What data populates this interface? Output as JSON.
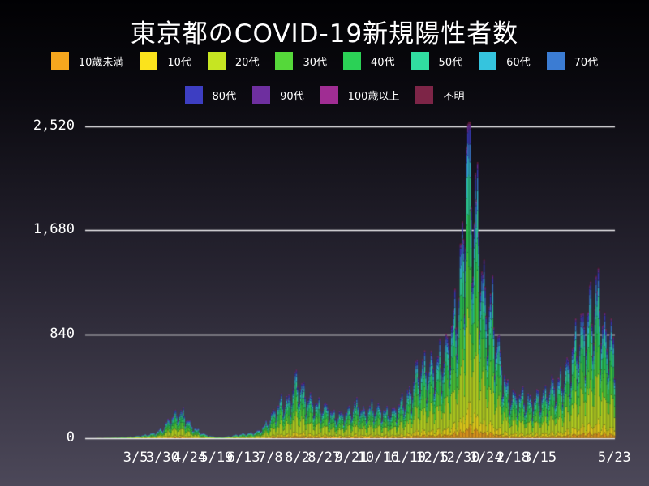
{
  "title": "東京都のCOVID-19新規陽性者数",
  "colors": {
    "background_top": "#010103",
    "background_bottom": "#4c4859",
    "grid_line": "#f0f0f2",
    "text": "#ffffff",
    "bar_outline": "rgba(10,12,24,0.4)"
  },
  "chart_data": {
    "type": "bar",
    "stacked": true,
    "title": "東京都のCOVID-19新規陽性者数",
    "x_start_date": "2020/1/24",
    "x_end_date": "2021/5/23",
    "ylim": [
      0,
      2520
    ],
    "grid": true,
    "legend_position": "top",
    "y_ticks": [
      {
        "value": 0,
        "label": "0"
      },
      {
        "value": 840,
        "label": "840"
      },
      {
        "value": 1680,
        "label": "1,680"
      },
      {
        "value": 2520,
        "label": "2,520"
      }
    ],
    "x_ticks": [
      {
        "day": 41,
        "label": "3/5"
      },
      {
        "day": 66,
        "label": "3/30"
      },
      {
        "day": 91,
        "label": "4/24"
      },
      {
        "day": 116,
        "label": "5/19"
      },
      {
        "day": 141,
        "label": "6/13"
      },
      {
        "day": 166,
        "label": "7/8"
      },
      {
        "day": 191,
        "label": "8/2"
      },
      {
        "day": 216,
        "label": "8/27"
      },
      {
        "day": 241,
        "label": "9/21"
      },
      {
        "day": 266,
        "label": "10/16"
      },
      {
        "day": 291,
        "label": "11/10"
      },
      {
        "day": 316,
        "label": "12/5"
      },
      {
        "day": 341,
        "label": "12/30"
      },
      {
        "day": 366,
        "label": "1/24"
      },
      {
        "day": 391,
        "label": "2/18"
      },
      {
        "day": 416,
        "label": "3/15"
      },
      {
        "day": 485,
        "label": "5/23"
      }
    ],
    "series": [
      {
        "name": "10歳未満",
        "color": "#F6A71E",
        "share": 0.035
      },
      {
        "name": "10代",
        "color": "#FBE31C",
        "share": 0.065
      },
      {
        "name": "20代",
        "color": "#C6E522",
        "share": 0.27
      },
      {
        "name": "30代",
        "color": "#55D83A",
        "share": 0.2
      },
      {
        "name": "40代",
        "color": "#2BD156",
        "share": 0.15
      },
      {
        "name": "50代",
        "color": "#31DDA0",
        "share": 0.105
      },
      {
        "name": "60代",
        "color": "#35C4DE",
        "share": 0.06
      },
      {
        "name": "70代",
        "color": "#3B7CD3",
        "share": 0.05
      },
      {
        "name": "80代",
        "color": "#3D3EC2",
        "share": 0.038
      },
      {
        "name": "90代",
        "color": "#6E2F9F",
        "share": 0.017
      },
      {
        "name": "100歳以上",
        "color": "#A02D93",
        "share": 0.003
      },
      {
        "name": "不明",
        "color": "#7D2547",
        "share": 0.007
      }
    ],
    "legend_row_split": 8,
    "daily_total_anchors": {
      "day_offsets": [
        0,
        8,
        15,
        22,
        29,
        37,
        44,
        51,
        58,
        65,
        72,
        78,
        84,
        88,
        92,
        99,
        106,
        113,
        120,
        127,
        134,
        141,
        148,
        155,
        162,
        169,
        176,
        183,
        190,
        197,
        204,
        211,
        218,
        225,
        232,
        239,
        246,
        253,
        260,
        267,
        274,
        281,
        288,
        295,
        302,
        309,
        316,
        323,
        330,
        337,
        342,
        345,
        349,
        351,
        354,
        358,
        365,
        372,
        379,
        386,
        393,
        400,
        407,
        414,
        421,
        428,
        435,
        442,
        449,
        456,
        463,
        470,
        477,
        482,
        485
      ],
      "values": [
        1,
        2,
        3,
        5,
        8,
        12,
        18,
        27,
        40,
        70,
        143,
        197,
        206,
        170,
        103,
        60,
        26,
        12,
        6,
        14,
        25,
        35,
        39,
        57,
        111,
        206,
        290,
        295,
        470,
        360,
        300,
        256,
        247,
        181,
        187,
        218,
        270,
        207,
        249,
        235,
        203,
        215,
        294,
        352,
        539,
        561,
        584,
        621,
        736,
        949,
        1337,
        1591,
        2520,
        2268,
        1837,
        1809,
        1070,
        1026,
        639,
        369,
        327,
        337,
        293,
        330,
        342,
        430,
        446,
        570,
        759,
        876,
        1050,
        1121,
        772,
        843,
        535
      ]
    },
    "weekday_factors": [
      1.1,
      1.15,
      0.92,
      0.6,
      0.78,
      1.02,
      1.1
    ]
  }
}
